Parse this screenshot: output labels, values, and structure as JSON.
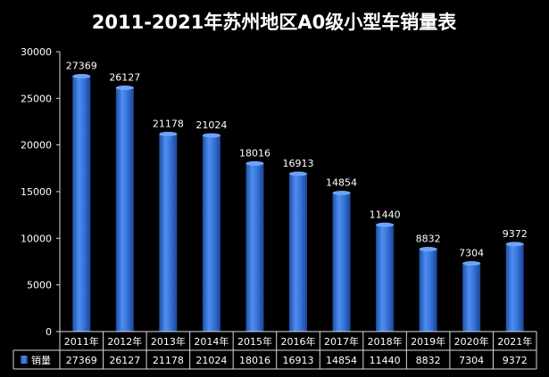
{
  "chart_data": {
    "type": "bar",
    "title": "2011-2021年苏州地区A0级小型车销量表",
    "categories": [
      "2011年",
      "2012年",
      "2013年",
      "2014年",
      "2015年",
      "2016年",
      "2017年",
      "2018年",
      "2019年",
      "2020年",
      "2021年"
    ],
    "series": [
      {
        "name": "销量",
        "values": [
          27369,
          26127,
          21178,
          21024,
          18016,
          16913,
          14854,
          11440,
          8832,
          7304,
          9372
        ]
      }
    ],
    "ylim": [
      0,
      30000
    ],
    "yticks": [
      0,
      5000,
      10000,
      15000,
      20000,
      25000,
      30000
    ],
    "legend": "data-table",
    "bar_color": "#3f7fe0",
    "background": "#000000"
  }
}
